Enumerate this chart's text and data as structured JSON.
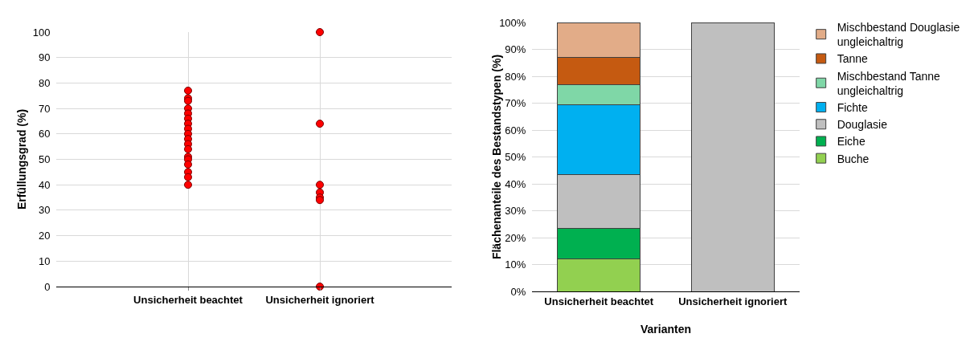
{
  "chart_data": [
    {
      "type": "scatter",
      "ylabel": "Erfüllungsgrad (%)",
      "categories": [
        "Unsicherheit beachtet",
        "Unsicherheit ignoriert"
      ],
      "ylim": [
        0,
        100
      ],
      "yticks": [
        0,
        10,
        20,
        30,
        40,
        50,
        60,
        70,
        80,
        90,
        100
      ],
      "grid": true,
      "legend": false,
      "marker": "circle",
      "series": [
        {
          "color": "#ff0000",
          "x": [
            "Unsicherheit beachtet",
            "Unsicherheit beachtet",
            "Unsicherheit beachtet",
            "Unsicherheit beachtet",
            "Unsicherheit beachtet",
            "Unsicherheit beachtet",
            "Unsicherheit beachtet",
            "Unsicherheit beachtet",
            "Unsicherheit beachtet",
            "Unsicherheit beachtet",
            "Unsicherheit beachtet",
            "Unsicherheit beachtet",
            "Unsicherheit beachtet",
            "Unsicherheit beachtet",
            "Unsicherheit beachtet",
            "Unsicherheit beachtet",
            "Unsicherheit beachtet",
            "Unsicherheit beachtet",
            "Unsicherheit ignoriert",
            "Unsicherheit ignoriert",
            "Unsicherheit ignoriert",
            "Unsicherheit ignoriert",
            "Unsicherheit ignoriert",
            "Unsicherheit ignoriert",
            "Unsicherheit ignoriert"
          ],
          "values": [
            77,
            74,
            73,
            70,
            68,
            66,
            64,
            62,
            60,
            58,
            56,
            54,
            51,
            50,
            48,
            45,
            43,
            40,
            100,
            64,
            40,
            37,
            35,
            34,
            0
          ]
        }
      ]
    },
    {
      "type": "bar",
      "stacked": true,
      "xlabel": "Varianten",
      "ylabel": "Flächenanteile des Bestandstypen (%)",
      "categories": [
        "Unsicherheit beachtet",
        "Unsicherheit ignoriert"
      ],
      "ylim": [
        0,
        100
      ],
      "yticks": [
        {
          "value": 0,
          "label": "0%"
        },
        {
          "value": 10,
          "label": "10%"
        },
        {
          "value": 20,
          "label": "20%"
        },
        {
          "value": 30,
          "label": "30%"
        },
        {
          "value": 40,
          "label": "40%"
        },
        {
          "value": 50,
          "label": "50%"
        },
        {
          "value": 60,
          "label": "60%"
        },
        {
          "value": 70,
          "label": "70%"
        },
        {
          "value": 80,
          "label": "80%"
        },
        {
          "value": 90,
          "label": "90%"
        },
        {
          "value": 100,
          "label": "100%"
        }
      ],
      "grid": "y",
      "legend": "right",
      "series": [
        {
          "name": "Buche",
          "color": "#92d050",
          "values": [
            12,
            null
          ]
        },
        {
          "name": "Eiche",
          "color": "#00b050",
          "values": [
            11.5,
            null
          ]
        },
        {
          "name": "Douglasie",
          "color": "#bfbfbf",
          "values": [
            20,
            100
          ]
        },
        {
          "name": "Fichte",
          "color": "#00b0f0",
          "values": [
            26,
            null
          ]
        },
        {
          "name": "Mischbestand Tanne ungleichaltrig",
          "color": "#7fd7a7",
          "values": [
            7.5,
            null
          ]
        },
        {
          "name": "Tanne",
          "color": "#c55a11",
          "values": [
            10,
            null
          ]
        },
        {
          "name": "Mischbestand Douglasie ungleichaltrig",
          "color": "#e2ac88",
          "values": [
            13,
            null
          ]
        }
      ]
    }
  ]
}
